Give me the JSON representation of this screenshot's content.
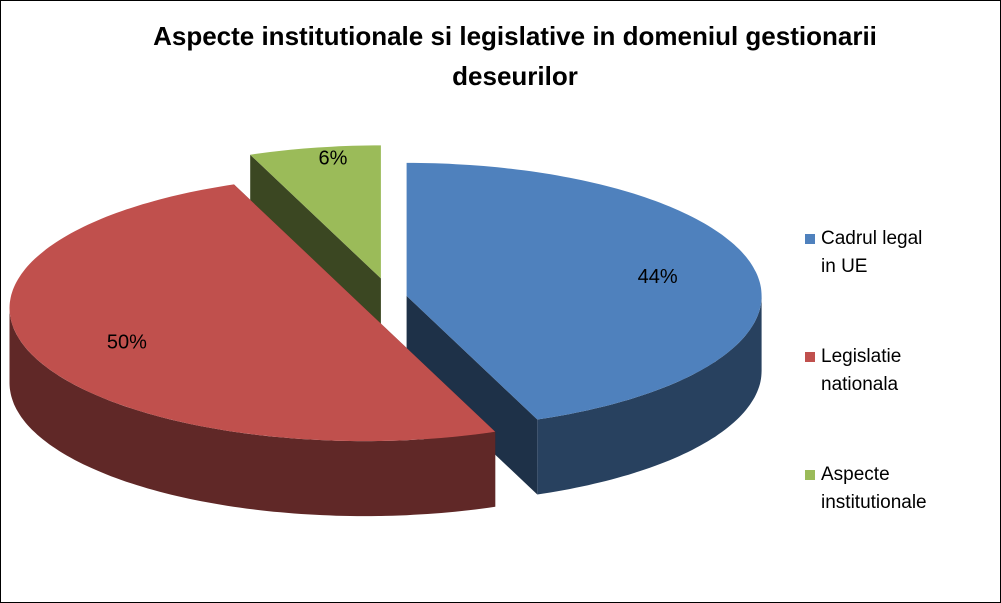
{
  "chart_data": {
    "type": "pie",
    "title": "Aspecte institutionale si legislative in domeniul gestionarii deseurilor",
    "categories": [
      "Cadrul legal in UE",
      "Legislatie nationala",
      "Aspecte institutionale"
    ],
    "values": [
      44,
      50,
      6
    ],
    "value_labels": [
      "44%",
      "50%",
      "6%"
    ],
    "colors": [
      "#4f81bd",
      "#c0504d",
      "#9bbb59"
    ],
    "legend": "right"
  }
}
